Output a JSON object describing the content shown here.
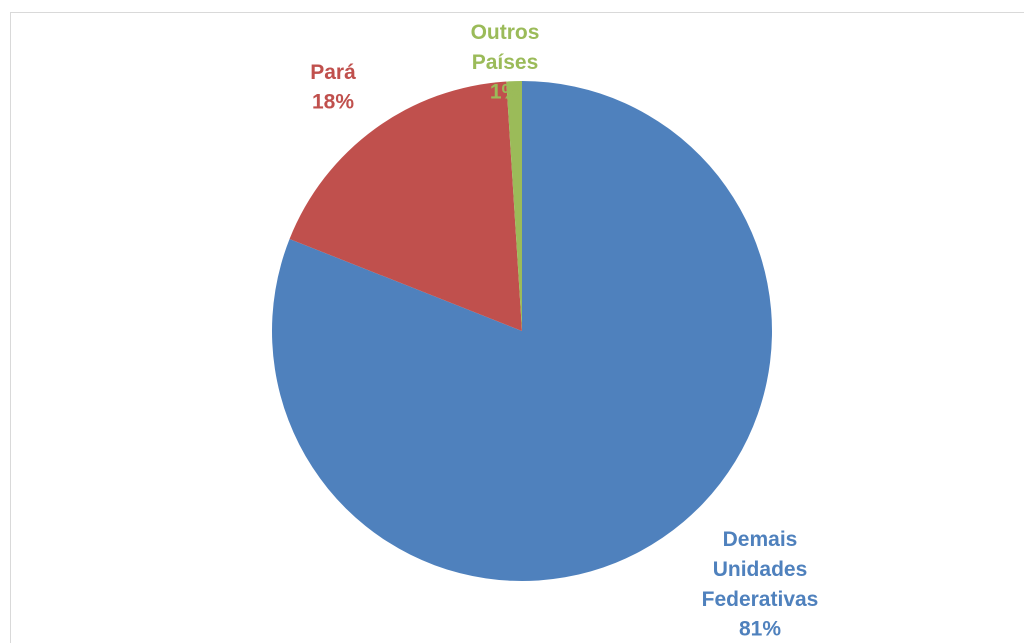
{
  "chart_data": {
    "type": "pie",
    "categories": [
      "Demais Unidades Federativas",
      "Pará",
      "Outros Países"
    ],
    "values": [
      81,
      18,
      1
    ],
    "value_labels": [
      "81%",
      "18%",
      "1%"
    ],
    "colors": [
      "#4f81bd",
      "#c0504d",
      "#9bbb59"
    ]
  }
}
